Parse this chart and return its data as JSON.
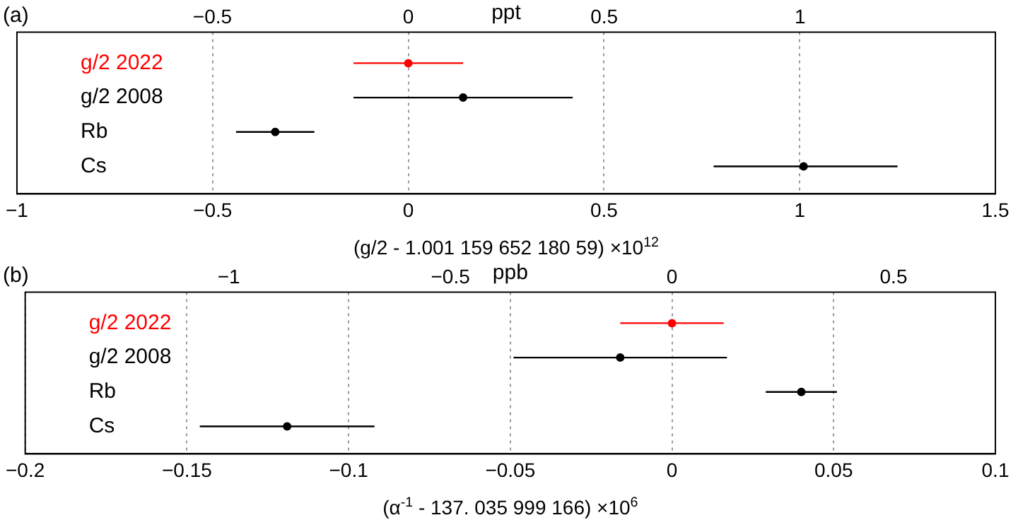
{
  "chart_data": [
    {
      "type": "scatter",
      "orientation": "horizontal",
      "title": "(a)",
      "xlabel": "(g/2 - 1.001 159 652 180 59) ×10$^{12}$",
      "x2label": "ppt",
      "categories": [
        "g/2 2022",
        "g/2 2008",
        "Rb",
        "Cs"
      ],
      "values": [
        0,
        0.14,
        -0.34,
        1.01
      ],
      "errors": [
        [
          -0.14,
          0.14
        ],
        [
          -0.14,
          0.42
        ],
        [
          -0.44,
          -0.24
        ],
        [
          0.78,
          1.25
        ]
      ],
      "colors": [
        "#ff0000",
        "#000000",
        "#000000",
        "#000000"
      ],
      "marker": "circle",
      "grid": "x",
      "xlim": [
        -1,
        1.5
      ],
      "xticks": [
        -1,
        -0.5,
        0,
        0.5,
        1,
        1.5
      ],
      "x2lim": [
        -0.9988,
        1.4983
      ],
      "x2ticks": [
        -0.5,
        0,
        0.5,
        1
      ]
    },
    {
      "type": "scatter",
      "orientation": "horizontal",
      "title": "(b)",
      "xlabel": "(α$^{-1}$ - 137. 035 999 166) ×10$^{6}$",
      "x2label": "ppb",
      "categories": [
        "g/2 2022",
        "g/2 2008",
        "Rb",
        "Cs"
      ],
      "values": [
        0,
        -0.016,
        0.04,
        -0.119
      ],
      "errors": [
        [
          -0.016,
          0.016
        ],
        [
          -0.049,
          0.017
        ],
        [
          0.029,
          0.051
        ],
        [
          -0.146,
          -0.092
        ]
      ],
      "colors": [
        "#ff0000",
        "#000000",
        "#000000",
        "#000000"
      ],
      "marker": "circle",
      "grid": "x",
      "xlim": [
        -0.2,
        0.1
      ],
      "xticks": [
        -0.2,
        -0.15,
        -0.1,
        -0.05,
        0,
        0.05,
        0.1
      ],
      "x2lim": [
        -1.4595,
        0.7297
      ],
      "x2ticks": [
        -1,
        -0.5,
        0,
        0.5
      ]
    }
  ]
}
